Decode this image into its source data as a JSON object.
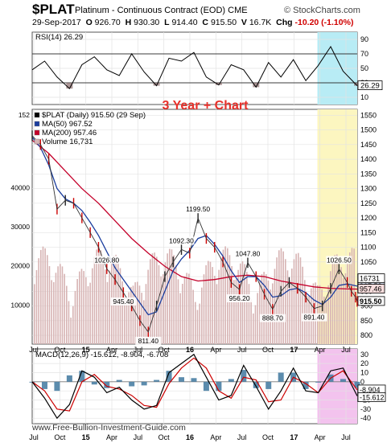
{
  "header": {
    "symbol": "$PLAT",
    "name": "Platinum - Continuous Contract (EOD)",
    "exchange": "CME",
    "brand": "© StockCharts.com"
  },
  "quote": {
    "date": "29-Sep-2017",
    "open_label": "O",
    "open": "926.70",
    "high_label": "H",
    "high": "930.30",
    "low_label": "L",
    "low": "914.40",
    "close_label": "C",
    "close": "915.50",
    "volume_label": "V",
    "volume": "16.7K",
    "change_label": "Chg",
    "change": "-10.20 (-1.10%)"
  },
  "annotation": "3 Year + Chart",
  "watermark": "www.Free-Bullion-Investment-Guide.com",
  "colors": {
    "price_up": "#222222",
    "price_down": "#cc0000",
    "ma50": "#1a3d9e",
    "ma200": "#c4002a",
    "volume": "#d7b4b4",
    "macd_line": "#000000",
    "macd_signal": "#cc0000",
    "histogram": "#4a7fa4",
    "highlight_rsi": "#b8ecf5",
    "highlight_price": "#fcf6c0",
    "highlight_macd": "#f3c3ee"
  },
  "chart_data": [
    {
      "type": "line",
      "panel": "RSI",
      "legend": "RSI(14) 26.29",
      "ylim": [
        0,
        100
      ],
      "y_ticks": [
        "90",
        "70",
        "50",
        "30",
        "10"
      ],
      "reference_lines": [
        70,
        30
      ],
      "last_value_label": "26.29",
      "series": [
        {
          "name": "RSI(14)",
          "x": [
            0,
            1.5,
            3,
            4.5,
            6,
            7.5,
            9,
            10.5,
            12,
            13.5,
            15,
            16.5,
            18,
            19.5,
            21,
            22.5,
            24,
            25.5,
            27,
            28.5,
            30,
            31.5,
            33,
            34.5,
            36,
            37.5,
            39.2
          ],
          "values": [
            48,
            60,
            38,
            22,
            55,
            66,
            48,
            40,
            70,
            45,
            26,
            64,
            60,
            72,
            38,
            27,
            55,
            48,
            24,
            58,
            38,
            62,
            33,
            54,
            80,
            46,
            26
          ]
        }
      ]
    },
    {
      "type": "line",
      "panel": "price",
      "legend": [
        {
          "label": "$PLAT (Daily) 915.50 (29 Sep)"
        },
        {
          "label": "MA(50) 967.52"
        },
        {
          "label": "MA(200) 957.46"
        },
        {
          "label": "Volume 16,731"
        }
      ],
      "ylim": [
        770,
        1570
      ],
      "y_ticks": [
        "1550",
        "1500",
        "1450",
        "1400",
        "1350",
        "1300",
        "1250",
        "1200",
        "1150",
        "1100",
        "1050",
        "1000",
        "950",
        "900",
        "850",
        "800"
      ],
      "left_axis_ticks": [
        "40000",
        "30000",
        "20000",
        "10000"
      ],
      "left_axis_stub": "152",
      "x_axis_labels": [
        "Jul",
        "Oct",
        "15",
        "Apr",
        "Jul",
        "Oct",
        "16",
        "Apr",
        "Jul",
        "Oct",
        "17",
        "Apr",
        "Jul"
      ],
      "price_labels": [
        "1199.50",
        "1092.30",
        "1047.80",
        "1026.80",
        "1026.50",
        "945.40",
        "956.20",
        "888.70",
        "891.40",
        "811.40"
      ],
      "right_value_labels": [
        "967.52",
        "957.46",
        "915.50",
        "16731"
      ],
      "series": [
        {
          "name": "$PLAT",
          "x": [
            0,
            1,
            2,
            3,
            4,
            5,
            6,
            7,
            8,
            9,
            10,
            11,
            12,
            13,
            14,
            15,
            16,
            17,
            18,
            19,
            20,
            21,
            22,
            23,
            24,
            25,
            26,
            27,
            28,
            29,
            30,
            31,
            32,
            33,
            34,
            35,
            36,
            37,
            38,
            38.5,
            39,
            39.2
          ],
          "values": [
            1480,
            1450,
            1400,
            1230,
            1260,
            1250,
            1200,
            1150,
            1100,
            1026.8,
            990,
            945.4,
            900,
            850,
            811.4,
            900,
            1000,
            1050,
            1092.3,
            1080,
            1199.5,
            1130,
            1100,
            1050,
            980,
            956.2,
            1047.8,
            1000,
            940,
            888.7,
            950,
            980,
            960,
            930,
            891.4,
            900,
            960,
            1026.5,
            980,
            950,
            930,
            915.5
          ]
        },
        {
          "name": "MA(50)",
          "x": [
            0,
            1,
            2,
            3,
            4,
            5,
            6,
            7,
            8,
            9,
            10,
            11,
            12,
            13,
            14,
            15,
            16,
            17,
            18,
            19,
            20,
            21,
            22,
            23,
            24,
            25,
            26,
            27,
            28,
            29,
            30,
            31,
            32,
            33,
            34,
            35,
            36,
            37,
            38,
            39.2
          ],
          "values": [
            1475,
            1440,
            1380,
            1300,
            1265,
            1250,
            1225,
            1185,
            1140,
            1085,
            1030,
            990,
            950,
            910,
            870,
            880,
            950,
            1020,
            1060,
            1090,
            1130,
            1140,
            1110,
            1070,
            1020,
            980,
            1000,
            1000,
            970,
            930,
            935,
            955,
            960,
            945,
            920,
            905,
            930,
            970,
            975,
            967.52
          ]
        },
        {
          "name": "MA(200)",
          "x": [
            0,
            2,
            4,
            6,
            8,
            10,
            12,
            14,
            16,
            18,
            20,
            22,
            24,
            26,
            28,
            30,
            32,
            34,
            36,
            38,
            39.2
          ],
          "values": [
            1465,
            1420,
            1360,
            1300,
            1250,
            1190,
            1130,
            1080,
            1035,
            1000,
            985,
            990,
            1000,
            1005,
            1000,
            985,
            975,
            965,
            960,
            958,
            957.46
          ]
        }
      ]
    },
    {
      "type": "line",
      "panel": "MACD",
      "legend": "MACD(12,26,9) -15.612, -8.904, -6.708",
      "ylim": [
        -46,
        36
      ],
      "y_ticks": [
        "30",
        "20",
        "10",
        "0",
        "-10",
        "-20",
        "-30",
        "-40"
      ],
      "x_axis_labels": [
        "Jul",
        "Oct",
        "15",
        "Apr",
        "Jul",
        "Oct",
        "16",
        "Apr",
        "Jul",
        "Oct",
        "17",
        "Apr",
        "Jul"
      ],
      "right_value_labels": [
        "-8.904",
        "-15.612"
      ],
      "series": [
        {
          "name": "MACD",
          "x": [
            0,
            1.5,
            3,
            4.5,
            6,
            7.5,
            9,
            10.5,
            12,
            13.5,
            15,
            16.5,
            18,
            19.5,
            21,
            22.5,
            24,
            25.5,
            27,
            28.5,
            30,
            31.5,
            33,
            34.5,
            36,
            37.5,
            39.2
          ],
          "values": [
            0,
            -18,
            -40,
            -25,
            12,
            5,
            -12,
            -6,
            -20,
            -30,
            -26,
            10,
            20,
            30,
            5,
            -20,
            -15,
            18,
            -5,
            -30,
            -10,
            15,
            -10,
            -12,
            12,
            15,
            -15.612
          ]
        },
        {
          "name": "signal",
          "x": [
            0,
            1.5,
            3,
            4.5,
            6,
            7.5,
            9,
            10.5,
            12,
            13.5,
            15,
            16.5,
            18,
            19.5,
            21,
            22.5,
            24,
            25.5,
            27,
            28.5,
            30,
            31.5,
            33,
            34.5,
            36,
            37.5,
            39.2
          ],
          "values": [
            0,
            -10,
            -30,
            -32,
            0,
            8,
            -5,
            -8,
            -15,
            -26,
            -28,
            -2,
            15,
            26,
            15,
            -10,
            -18,
            5,
            2,
            -22,
            -20,
            5,
            -2,
            -12,
            4,
            12,
            -8.904
          ]
        },
        {
          "name": "histogram",
          "x": [
            0,
            1.5,
            3,
            4.5,
            6,
            7.5,
            9,
            10.5,
            12,
            13.5,
            15,
            16.5,
            18,
            19.5,
            21,
            22.5,
            24,
            25.5,
            27,
            28.5,
            30,
            31.5,
            33,
            34.5,
            36,
            37.5,
            39.2
          ],
          "values": [
            0,
            -8,
            -10,
            7,
            12,
            -3,
            -7,
            2,
            -5,
            -4,
            2,
            12,
            5,
            4,
            -10,
            -10,
            3,
            13,
            -7,
            -8,
            10,
            10,
            -8,
            0,
            8,
            3,
            -6.708
          ]
        }
      ]
    }
  ]
}
